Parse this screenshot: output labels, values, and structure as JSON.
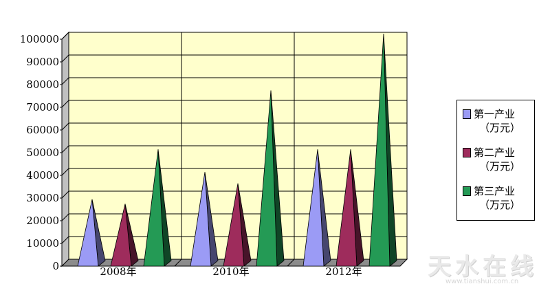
{
  "chart_data": {
    "type": "bar",
    "style": "3d-pyramid",
    "categories": [
      "2008年",
      "2010年",
      "2012年"
    ],
    "series": [
      {
        "name": "第一产业（万元）",
        "color": "#9b9bf5",
        "values": [
          27000,
          39000,
          49000
        ]
      },
      {
        "name": "第二产业（万元）",
        "color": "#9e2c5c",
        "values": [
          25000,
          34000,
          49000
        ]
      },
      {
        "name": "第三产业（万元）",
        "color": "#249a55",
        "values": [
          49000,
          75000,
          100000
        ]
      }
    ],
    "yticks": [
      "0",
      "10000",
      "20000",
      "30000",
      "40000",
      "50000",
      "60000",
      "70000",
      "80000",
      "90000",
      "100000"
    ],
    "ylim": [
      0,
      100000
    ],
    "grid": true,
    "plot_background": "#ffffcc",
    "legend_position": "right",
    "legend": [
      {
        "line1": "第一产业",
        "line2": "（万元）"
      },
      {
        "line1": "第二产业",
        "line2": "（万元）"
      },
      {
        "line1": "第三产业",
        "line2": "（万元）"
      }
    ]
  },
  "watermark": {
    "text": "天水在线",
    "url": "www.tianshui.com.cn"
  }
}
